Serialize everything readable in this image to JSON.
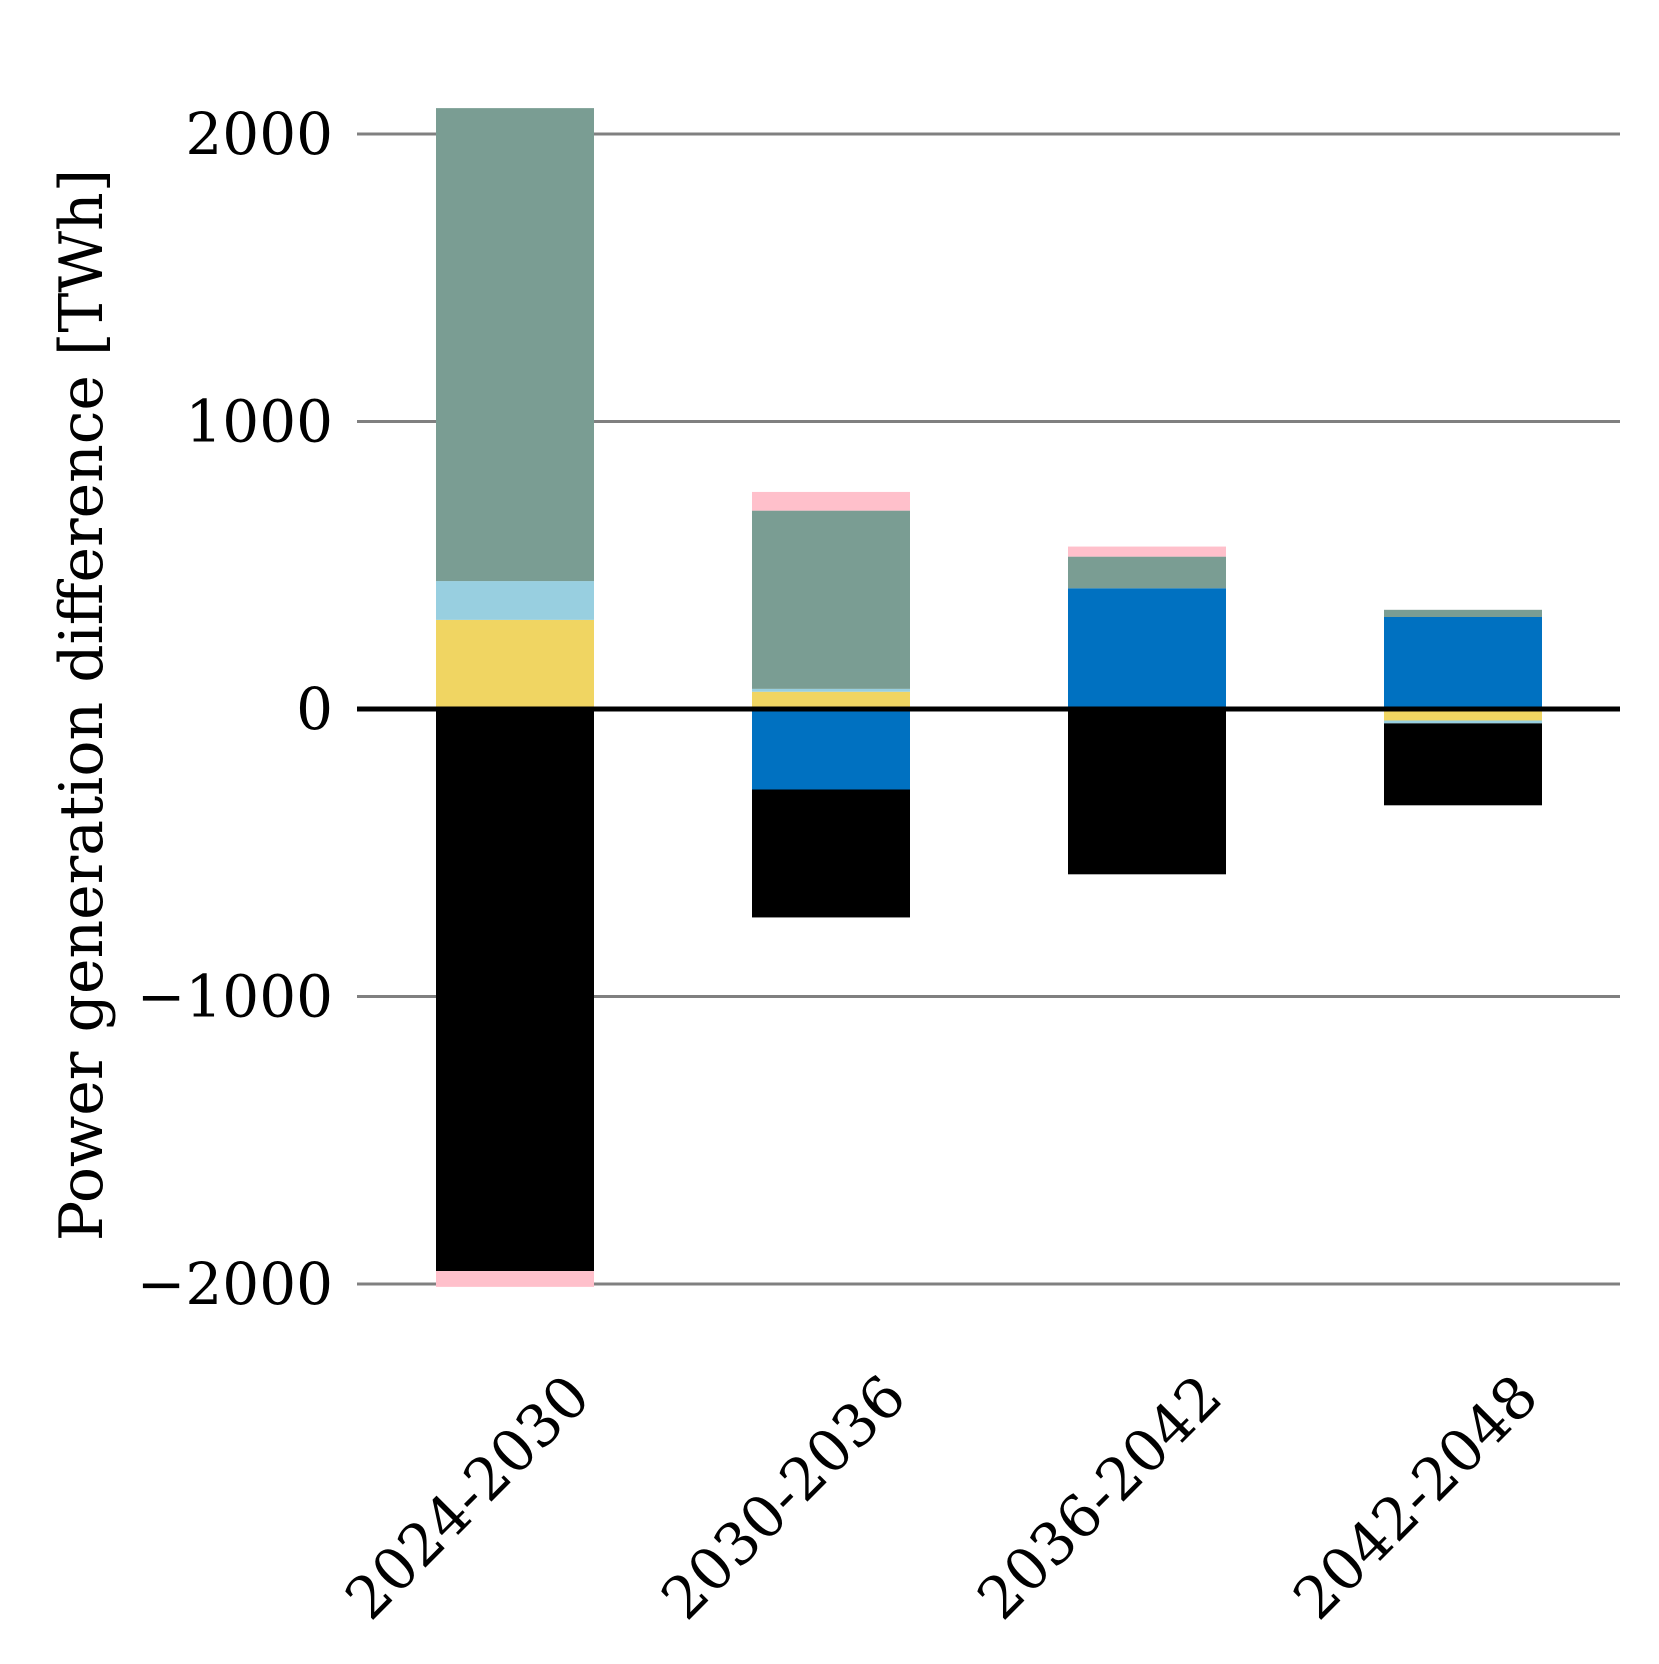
{
  "chart_data": {
    "type": "bar",
    "stacked": true,
    "title": "",
    "xlabel": "",
    "ylabel": "Power generation difference [TWh]",
    "categories": [
      "2024-2030",
      "2030-2036",
      "2036-2042",
      "2042-2048"
    ],
    "ylim": [
      -2000,
      2100
    ],
    "yticks": [
      -2000,
      -1000,
      0,
      1000,
      2000
    ],
    "ytick_labels": [
      "−2000",
      "−1000",
      "0",
      "1000",
      "2000"
    ],
    "grid": true,
    "legend": "none",
    "colors": {
      "grid": "#808080",
      "zero_line": "#000000"
    },
    "segments": [
      [
        {
          "color": "#f0d562",
          "from": 0,
          "to": 310
        },
        {
          "color": "#98cfe0",
          "from": 310,
          "to": 445
        },
        {
          "color": "#7a9d93",
          "from": 445,
          "to": 2090
        },
        {
          "color": "#000000",
          "from": 0,
          "to": -1955
        },
        {
          "color": "#ffc0cb",
          "from": -1955,
          "to": -2010
        }
      ],
      [
        {
          "color": "#f0d562",
          "from": 0,
          "to": 60
        },
        {
          "color": "#98cfe0",
          "from": 60,
          "to": 70
        },
        {
          "color": "#7a9d93",
          "from": 70,
          "to": 690
        },
        {
          "color": "#ffc0cb",
          "from": 690,
          "to": 755
        },
        {
          "color": "#0071c1",
          "from": 0,
          "to": -280
        },
        {
          "color": "#000000",
          "from": -280,
          "to": -725
        }
      ],
      [
        {
          "color": "#0071c1",
          "from": 0,
          "to": 420
        },
        {
          "color": "#7a9d93",
          "from": 420,
          "to": 530
        },
        {
          "color": "#ffc0cb",
          "from": 530,
          "to": 565
        },
        {
          "color": "#000000",
          "from": 0,
          "to": -575
        }
      ],
      [
        {
          "color": "#0071c1",
          "from": 0,
          "to": 320
        },
        {
          "color": "#7a9d93",
          "from": 320,
          "to": 345
        },
        {
          "color": "#f0d562",
          "from": 0,
          "to": -40
        },
        {
          "color": "#98cfe0",
          "from": -40,
          "to": -50
        },
        {
          "color": "#000000",
          "from": -50,
          "to": -335
        }
      ]
    ]
  }
}
